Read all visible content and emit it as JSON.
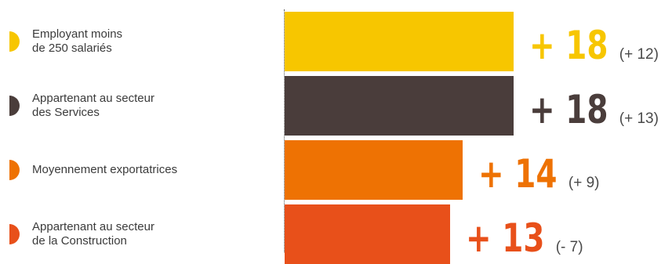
{
  "chart_data": {
    "type": "bar",
    "orientation": "horizontal",
    "categories": [
      "Employant moins de 250 salariés",
      "Appartenant au secteur des Services",
      "Moyennement exportatrices",
      "Appartenant au secteur de la Construction"
    ],
    "values": [
      18,
      18,
      14,
      13
    ],
    "value_labels": [
      "+ 18",
      "+ 18",
      "+ 14",
      "+ 13"
    ],
    "previous_labels": [
      "(+ 12)",
      "(+ 13)",
      "(+ 9)",
      "(- 7)"
    ],
    "colors": [
      "#f7c600",
      "#4a3d3b",
      "#ee7203",
      "#e8501a"
    ],
    "xlim": [
      0,
      18.5
    ],
    "grid": false,
    "legend": "left"
  },
  "rows": [
    {
      "label": "Employant moins\nde 250 salariés",
      "color": "#f7c600"
    },
    {
      "label": "Appartenant au secteur\ndes Services",
      "color": "#4a3d3b"
    },
    {
      "label": "Moyennement exportatrices",
      "color": "#ee7203"
    },
    {
      "label": "Appartenant au secteur\nde la Construction",
      "color": "#e8501a"
    }
  ]
}
